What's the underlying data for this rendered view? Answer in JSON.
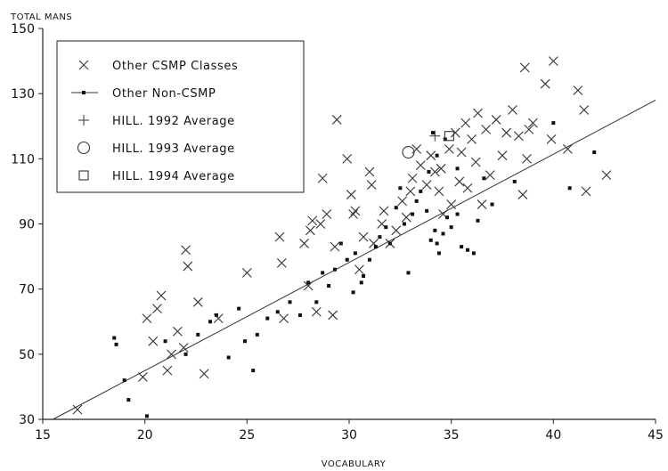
{
  "chart_data": {
    "type": "scatter",
    "title": "",
    "xlabel": "VOCABULARY",
    "ylabel": "TOTAL MANS",
    "xlim": [
      15,
      45
    ],
    "ylim": [
      30,
      150
    ],
    "xticks": [
      15,
      20,
      25,
      30,
      35,
      40,
      45
    ],
    "yticks": [
      30,
      50,
      70,
      90,
      110,
      130,
      150
    ],
    "grid": false,
    "legend_position": "top-left",
    "legend": [
      {
        "label": "Other CSMP Classes",
        "marker": "x"
      },
      {
        "label": "Other Non-CSMP",
        "marker": "square-line"
      },
      {
        "label": "HILL. 1992 Average",
        "marker": "plus"
      },
      {
        "label": "HILL. 1993 Average",
        "marker": "circle"
      },
      {
        "label": "HILL. 1994 Average",
        "marker": "square"
      }
    ],
    "trend_line": {
      "x": [
        15.5,
        45
      ],
      "y": [
        30,
        128
      ]
    },
    "series": [
      {
        "name": "Other CSMP Classes",
        "marker": "x",
        "points": [
          [
            16.7,
            33
          ],
          [
            19.9,
            43
          ],
          [
            20.1,
            61
          ],
          [
            20.4,
            54
          ],
          [
            20.6,
            64
          ],
          [
            20.8,
            68
          ],
          [
            21.1,
            45
          ],
          [
            21.3,
            50
          ],
          [
            21.6,
            57
          ],
          [
            21.9,
            52
          ],
          [
            22.0,
            82
          ],
          [
            22.1,
            77
          ],
          [
            22.6,
            66
          ],
          [
            22.9,
            44
          ],
          [
            23.6,
            61
          ],
          [
            25.0,
            75
          ],
          [
            26.6,
            86
          ],
          [
            26.7,
            78
          ],
          [
            26.8,
            61
          ],
          [
            27.8,
            84
          ],
          [
            28.0,
            71
          ],
          [
            28.1,
            88
          ],
          [
            28.2,
            91
          ],
          [
            28.4,
            63
          ],
          [
            28.6,
            90
          ],
          [
            28.7,
            104
          ],
          [
            28.9,
            93
          ],
          [
            29.2,
            62
          ],
          [
            29.3,
            83
          ],
          [
            29.4,
            122
          ],
          [
            29.9,
            110
          ],
          [
            30.1,
            99
          ],
          [
            30.2,
            93
          ],
          [
            30.3,
            94
          ],
          [
            30.5,
            76
          ],
          [
            30.7,
            86
          ],
          [
            31.0,
            106
          ],
          [
            31.1,
            102
          ],
          [
            31.2,
            84
          ],
          [
            31.6,
            90
          ],
          [
            31.7,
            94
          ],
          [
            32.0,
            84
          ],
          [
            32.3,
            88
          ],
          [
            32.6,
            97
          ],
          [
            32.8,
            92
          ],
          [
            33.0,
            100
          ],
          [
            33.1,
            104
          ],
          [
            33.3,
            113
          ],
          [
            33.5,
            108
          ],
          [
            33.8,
            102
          ],
          [
            34.0,
            111
          ],
          [
            34.2,
            106
          ],
          [
            34.4,
            100
          ],
          [
            34.5,
            107
          ],
          [
            34.6,
            93
          ],
          [
            34.9,
            113
          ],
          [
            35.0,
            96
          ],
          [
            35.2,
            118
          ],
          [
            35.4,
            103
          ],
          [
            35.5,
            112
          ],
          [
            35.7,
            121
          ],
          [
            36.0,
            116
          ],
          [
            36.3,
            124
          ],
          [
            36.5,
            96
          ],
          [
            36.7,
            119
          ],
          [
            36.9,
            105
          ],
          [
            37.2,
            122
          ],
          [
            37.5,
            111
          ],
          [
            37.7,
            118
          ],
          [
            38.0,
            125
          ],
          [
            38.3,
            117
          ],
          [
            38.5,
            99
          ],
          [
            38.6,
            138
          ],
          [
            38.8,
            119
          ],
          [
            39.0,
            121
          ],
          [
            39.6,
            133
          ],
          [
            39.9,
            116
          ],
          [
            40.0,
            140
          ],
          [
            40.7,
            113
          ],
          [
            41.2,
            131
          ],
          [
            41.5,
            125
          ],
          [
            41.6,
            100
          ],
          [
            42.6,
            105
          ],
          [
            38.7,
            110
          ],
          [
            36.2,
            109
          ],
          [
            35.8,
            101
          ]
        ]
      },
      {
        "name": "Other Non-CSMP",
        "marker": "square",
        "points": [
          [
            18.5,
            55
          ],
          [
            18.6,
            53
          ],
          [
            19.0,
            42
          ],
          [
            19.2,
            36
          ],
          [
            20.1,
            31
          ],
          [
            21.0,
            54
          ],
          [
            22.0,
            50
          ],
          [
            22.6,
            56
          ],
          [
            23.2,
            60
          ],
          [
            23.5,
            62
          ],
          [
            24.1,
            49
          ],
          [
            24.6,
            64
          ],
          [
            24.9,
            54
          ],
          [
            25.3,
            45
          ],
          [
            25.5,
            56
          ],
          [
            26.0,
            61
          ],
          [
            26.5,
            63
          ],
          [
            27.1,
            66
          ],
          [
            27.6,
            62
          ],
          [
            28.0,
            72
          ],
          [
            28.4,
            66
          ],
          [
            28.7,
            75
          ],
          [
            29.0,
            71
          ],
          [
            29.3,
            76
          ],
          [
            29.6,
            84
          ],
          [
            29.9,
            79
          ],
          [
            30.2,
            69
          ],
          [
            30.3,
            81
          ],
          [
            30.6,
            72
          ],
          [
            30.7,
            74
          ],
          [
            31.0,
            79
          ],
          [
            31.3,
            83
          ],
          [
            31.5,
            86
          ],
          [
            31.8,
            89
          ],
          [
            32.0,
            84
          ],
          [
            32.3,
            95
          ],
          [
            32.7,
            90
          ],
          [
            32.9,
            75
          ],
          [
            33.1,
            93
          ],
          [
            33.3,
            97
          ],
          [
            33.5,
            100
          ],
          [
            33.8,
            94
          ],
          [
            34.0,
            85
          ],
          [
            34.2,
            88
          ],
          [
            34.3,
            84
          ],
          [
            34.4,
            81
          ],
          [
            34.6,
            87
          ],
          [
            34.8,
            92
          ],
          [
            35.0,
            89
          ],
          [
            35.3,
            93
          ],
          [
            35.5,
            83
          ],
          [
            35.8,
            82
          ],
          [
            36.1,
            81
          ],
          [
            36.3,
            91
          ],
          [
            36.6,
            104
          ],
          [
            37.0,
            96
          ],
          [
            34.1,
            118
          ],
          [
            34.3,
            111
          ],
          [
            34.7,
            116
          ],
          [
            35.3,
            107
          ],
          [
            38.1,
            103
          ],
          [
            40.0,
            121
          ],
          [
            40.8,
            101
          ],
          [
            42.0,
            112
          ],
          [
            33.9,
            106
          ],
          [
            32.5,
            101
          ]
        ]
      },
      {
        "name": "HILL. 1992 Average",
        "marker": "plus",
        "points": [
          [
            34.2,
            117
          ]
        ]
      },
      {
        "name": "HILL. 1993 Average",
        "marker": "circle",
        "points": [
          [
            32.9,
            112
          ]
        ]
      },
      {
        "name": "HILL. 1994 Average",
        "marker": "square-open",
        "points": [
          [
            34.9,
            117
          ]
        ]
      }
    ]
  }
}
